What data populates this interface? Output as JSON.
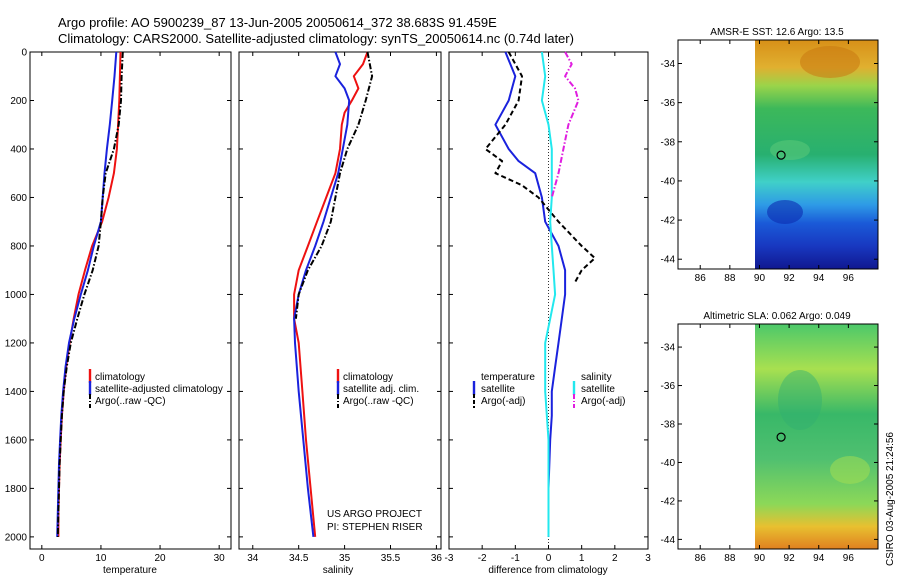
{
  "header": {
    "line1": "Argo profile: AO 5900239_87 13-Jun-2005 20050614_372 38.683S 91.459E",
    "line2": "Climatology: CARS2000. Satellite-adjusted climatology: synTS_20050614.nc (0.74d later)"
  },
  "colors": {
    "red": "#ee1111",
    "blue": "#1a22dd",
    "black": "#000000",
    "cyan": "#22e8ee",
    "magenta": "#e01ee0"
  },
  "side_label": "CSIRO 03-Aug-2005 21:24:56",
  "project": {
    "line1": "US ARGO PROJECT",
    "line2": "PI: STEPHEN RISER"
  },
  "chart_data": [
    {
      "type": "line",
      "id": "temperature",
      "xlabel": "temperature",
      "ylabel": "",
      "xlim": [
        -2,
        32
      ],
      "ylim": [
        2050,
        0
      ],
      "xticks": [
        0,
        10,
        20,
        30
      ],
      "yticks": [
        0,
        200,
        400,
        600,
        800,
        1000,
        1200,
        1400,
        1600,
        1800,
        2000
      ],
      "legend": [
        "climatology",
        "satellite-adjusted climatology",
        "Argo(..raw -QC)"
      ],
      "series": [
        {
          "name": "climatology",
          "color": "red",
          "dash": "solid",
          "points": [
            [
              13.3,
              0
            ],
            [
              13.2,
              100
            ],
            [
              13.1,
              200
            ],
            [
              12.9,
              300
            ],
            [
              12.7,
              400
            ],
            [
              12.2,
              500
            ],
            [
              11.3,
              600
            ],
            [
              10.2,
              700
            ],
            [
              8.5,
              800
            ],
            [
              7.3,
              900
            ],
            [
              6.2,
              1000
            ],
            [
              5.4,
              1100
            ],
            [
              4.7,
              1200
            ],
            [
              4.1,
              1300
            ],
            [
              3.7,
              1400
            ],
            [
              3.4,
              1500
            ],
            [
              3.2,
              1600
            ],
            [
              3.0,
              1700
            ],
            [
              2.9,
              1800
            ],
            [
              2.8,
              1900
            ],
            [
              2.8,
              2000
            ]
          ]
        },
        {
          "name": "satellite-adjusted climatology",
          "color": "blue",
          "dash": "solid",
          "points": [
            [
              12.6,
              0
            ],
            [
              12.3,
              100
            ],
            [
              11.9,
              200
            ],
            [
              11.5,
              300
            ],
            [
              11.0,
              400
            ],
            [
              10.6,
              500
            ],
            [
              10.3,
              600
            ],
            [
              10.0,
              700
            ],
            [
              8.8,
              800
            ],
            [
              7.8,
              900
            ],
            [
              6.6,
              1000
            ],
            [
              5.5,
              1100
            ],
            [
              4.6,
              1200
            ],
            [
              4.0,
              1300
            ],
            [
              3.6,
              1400
            ],
            [
              3.3,
              1500
            ],
            [
              3.1,
              1600
            ],
            [
              2.9,
              1700
            ],
            [
              2.8,
              1800
            ],
            [
              2.7,
              1900
            ],
            [
              2.6,
              2000
            ]
          ]
        },
        {
          "name": "Argo(..raw -QC)",
          "color": "black",
          "dash": "dashdot",
          "points": [
            [
              13.7,
              0
            ],
            [
              13.5,
              100
            ],
            [
              13.4,
              200
            ],
            [
              13.0,
              300
            ],
            [
              12.2,
              400
            ],
            [
              10.8,
              500
            ],
            [
              10.3,
              600
            ],
            [
              10.0,
              700
            ],
            [
              9.6,
              800
            ],
            [
              8.6,
              900
            ],
            [
              7.2,
              1000
            ],
            [
              6.0,
              1100
            ],
            [
              4.9,
              1200
            ],
            [
              4.2,
              1300
            ],
            [
              3.7,
              1400
            ],
            [
              3.4,
              1500
            ],
            [
              3.2,
              1600
            ],
            [
              3.0,
              1700
            ],
            [
              2.9,
              1800
            ],
            [
              2.8,
              1900
            ],
            [
              2.7,
              2000
            ]
          ]
        }
      ]
    },
    {
      "type": "line",
      "id": "salinity",
      "xlabel": "salinity",
      "ylabel": "",
      "xlim": [
        33.85,
        36.05
      ],
      "ylim": [
        2050,
        0
      ],
      "xticks": [
        34,
        34.5,
        35,
        35.5,
        36
      ],
      "yticks": [
        0,
        200,
        400,
        600,
        800,
        1000,
        1200,
        1400,
        1600,
        1800,
        2000
      ],
      "legend": [
        "climatology",
        "satellite adj. clim.",
        "Argo(..raw -QC)"
      ],
      "series": [
        {
          "name": "climatology",
          "color": "red",
          "dash": "solid",
          "points": [
            [
              35.25,
              0
            ],
            [
              35.2,
              50
            ],
            [
              35.1,
              100
            ],
            [
              35.15,
              150
            ],
            [
              35.08,
              200
            ],
            [
              35.0,
              250
            ],
            [
              34.97,
              300
            ],
            [
              34.95,
              400
            ],
            [
              34.9,
              500
            ],
            [
              34.8,
              600
            ],
            [
              34.7,
              700
            ],
            [
              34.6,
              800
            ],
            [
              34.5,
              900
            ],
            [
              34.45,
              1000
            ],
            [
              34.45,
              1100
            ],
            [
              34.5,
              1200
            ],
            [
              34.54,
              1400
            ],
            [
              34.58,
              1600
            ],
            [
              34.63,
              1800
            ],
            [
              34.68,
              2000
            ]
          ]
        },
        {
          "name": "satellite adj. clim.",
          "color": "blue",
          "dash": "solid",
          "points": [
            [
              34.9,
              0
            ],
            [
              34.95,
              50
            ],
            [
              34.9,
              100
            ],
            [
              35.0,
              150
            ],
            [
              35.05,
              200
            ],
            [
              35.03,
              300
            ],
            [
              34.98,
              400
            ],
            [
              34.93,
              500
            ],
            [
              34.85,
              600
            ],
            [
              34.77,
              700
            ],
            [
              34.68,
              800
            ],
            [
              34.58,
              900
            ],
            [
              34.5,
              1000
            ],
            [
              34.45,
              1100
            ],
            [
              34.46,
              1200
            ],
            [
              34.5,
              1400
            ],
            [
              34.55,
              1600
            ],
            [
              34.6,
              1800
            ],
            [
              34.66,
              2000
            ]
          ]
        },
        {
          "name": "Argo(..raw -QC)",
          "color": "black",
          "dash": "dashdot",
          "points": [
            [
              35.25,
              0
            ],
            [
              35.3,
              100
            ],
            [
              35.23,
              200
            ],
            [
              35.15,
              300
            ],
            [
              35.03,
              400
            ],
            [
              34.95,
              500
            ],
            [
              34.9,
              600
            ],
            [
              34.85,
              700
            ],
            [
              34.75,
              800
            ],
            [
              34.6,
              900
            ],
            [
              34.5,
              1000
            ],
            [
              34.47,
              1100
            ]
          ]
        }
      ]
    },
    {
      "type": "line",
      "id": "difference",
      "xlabel": "difference from climatology",
      "ylabel": "",
      "xlim": [
        -3,
        3
      ],
      "ylim": [
        2050,
        0
      ],
      "xticks": [
        -3,
        -2,
        -1,
        0,
        1,
        2,
        3
      ],
      "yticks": [
        0,
        200,
        400,
        600,
        800,
        1000,
        1200,
        1400,
        1600,
        1800,
        2000
      ],
      "legend_title_left": "temperature",
      "legend_title_right": "salinity",
      "legend": [
        "satellite",
        "Argo(-adj)",
        "satellite",
        "Argo(-adj)"
      ],
      "series": [
        {
          "name": "temperature satellite",
          "color": "blue",
          "dash": "solid",
          "points": [
            [
              -1.3,
              0
            ],
            [
              -1.0,
              100
            ],
            [
              -1.2,
              200
            ],
            [
              -1.6,
              300
            ],
            [
              -1.2,
              400
            ],
            [
              -0.9,
              450
            ],
            [
              -0.4,
              500
            ],
            [
              -0.2,
              600
            ],
            [
              -0.1,
              700
            ],
            [
              0.3,
              800
            ],
            [
              0.5,
              900
            ],
            [
              0.5,
              1000
            ],
            [
              0.4,
              1100
            ],
            [
              0.3,
              1200
            ],
            [
              0.2,
              1300
            ],
            [
              0.1,
              1400
            ],
            [
              0.1,
              1500
            ],
            [
              0.05,
              1600
            ],
            [
              0.0,
              1800
            ],
            [
              0.0,
              2000
            ]
          ]
        },
        {
          "name": "temperature Argo(-adj)",
          "color": "black",
          "dash": "dash",
          "points": [
            [
              -1.2,
              0
            ],
            [
              -0.8,
              100
            ],
            [
              -0.9,
              200
            ],
            [
              -1.3,
              300
            ],
            [
              -1.9,
              400
            ],
            [
              -1.4,
              450
            ],
            [
              -1.6,
              500
            ],
            [
              -0.8,
              550
            ],
            [
              -0.3,
              600
            ],
            [
              0.3,
              700
            ],
            [
              1.0,
              800
            ],
            [
              1.4,
              850
            ],
            [
              1.0,
              900
            ],
            [
              0.8,
              950
            ]
          ]
        },
        {
          "name": "salinity satellite",
          "color": "cyan",
          "dash": "solid",
          "points": [
            [
              -0.2,
              0
            ],
            [
              -0.1,
              100
            ],
            [
              -0.2,
              200
            ],
            [
              0.0,
              300
            ],
            [
              0.1,
              400
            ],
            [
              0.1,
              500
            ],
            [
              0.1,
              600
            ],
            [
              0.05,
              700
            ],
            [
              0.1,
              800
            ],
            [
              0.15,
              900
            ],
            [
              0.2,
              1000
            ],
            [
              0.05,
              1100
            ],
            [
              -0.1,
              1200
            ],
            [
              -0.1,
              1400
            ],
            [
              0.0,
              1600
            ],
            [
              0.0,
              1800
            ],
            [
              0.0,
              2000
            ]
          ]
        },
        {
          "name": "salinity Argo(-adj)",
          "color": "magenta",
          "dash": "dashdot",
          "points": [
            [
              0.5,
              0
            ],
            [
              0.7,
              50
            ],
            [
              0.5,
              100
            ],
            [
              0.8,
              150
            ],
            [
              0.9,
              200
            ],
            [
              0.6,
              300
            ],
            [
              0.45,
              400
            ],
            [
              0.3,
              500
            ],
            [
              0.1,
              600
            ]
          ]
        }
      ]
    },
    {
      "type": "heatmap",
      "id": "sst-map",
      "title": "AMSR-E SST: 12.6 Argo: 13.5",
      "xlim": [
        84.5,
        98
      ],
      "ylim": [
        -44.5,
        -32.8
      ],
      "xticks": [
        86,
        88,
        90,
        92,
        94,
        96
      ],
      "yticks": [
        -34,
        -36,
        -38,
        -40,
        -42,
        -44
      ],
      "data_extent_x": [
        90,
        98
      ],
      "marker": [
        91.459,
        -38.683
      ],
      "description": "field warm north, cool south"
    },
    {
      "type": "heatmap",
      "id": "sla-map",
      "title": "Altimetric SLA: 0.062 Argo: 0.049",
      "xlim": [
        84.5,
        98
      ],
      "ylim": [
        -44.5,
        -32.8
      ],
      "xticks": [
        86,
        88,
        90,
        92,
        94,
        96
      ],
      "yticks": [
        -34,
        -36,
        -38,
        -40,
        -42,
        -44
      ],
      "data_extent_x": [
        90,
        98
      ],
      "marker": [
        91.459,
        -38.683
      ]
    }
  ]
}
